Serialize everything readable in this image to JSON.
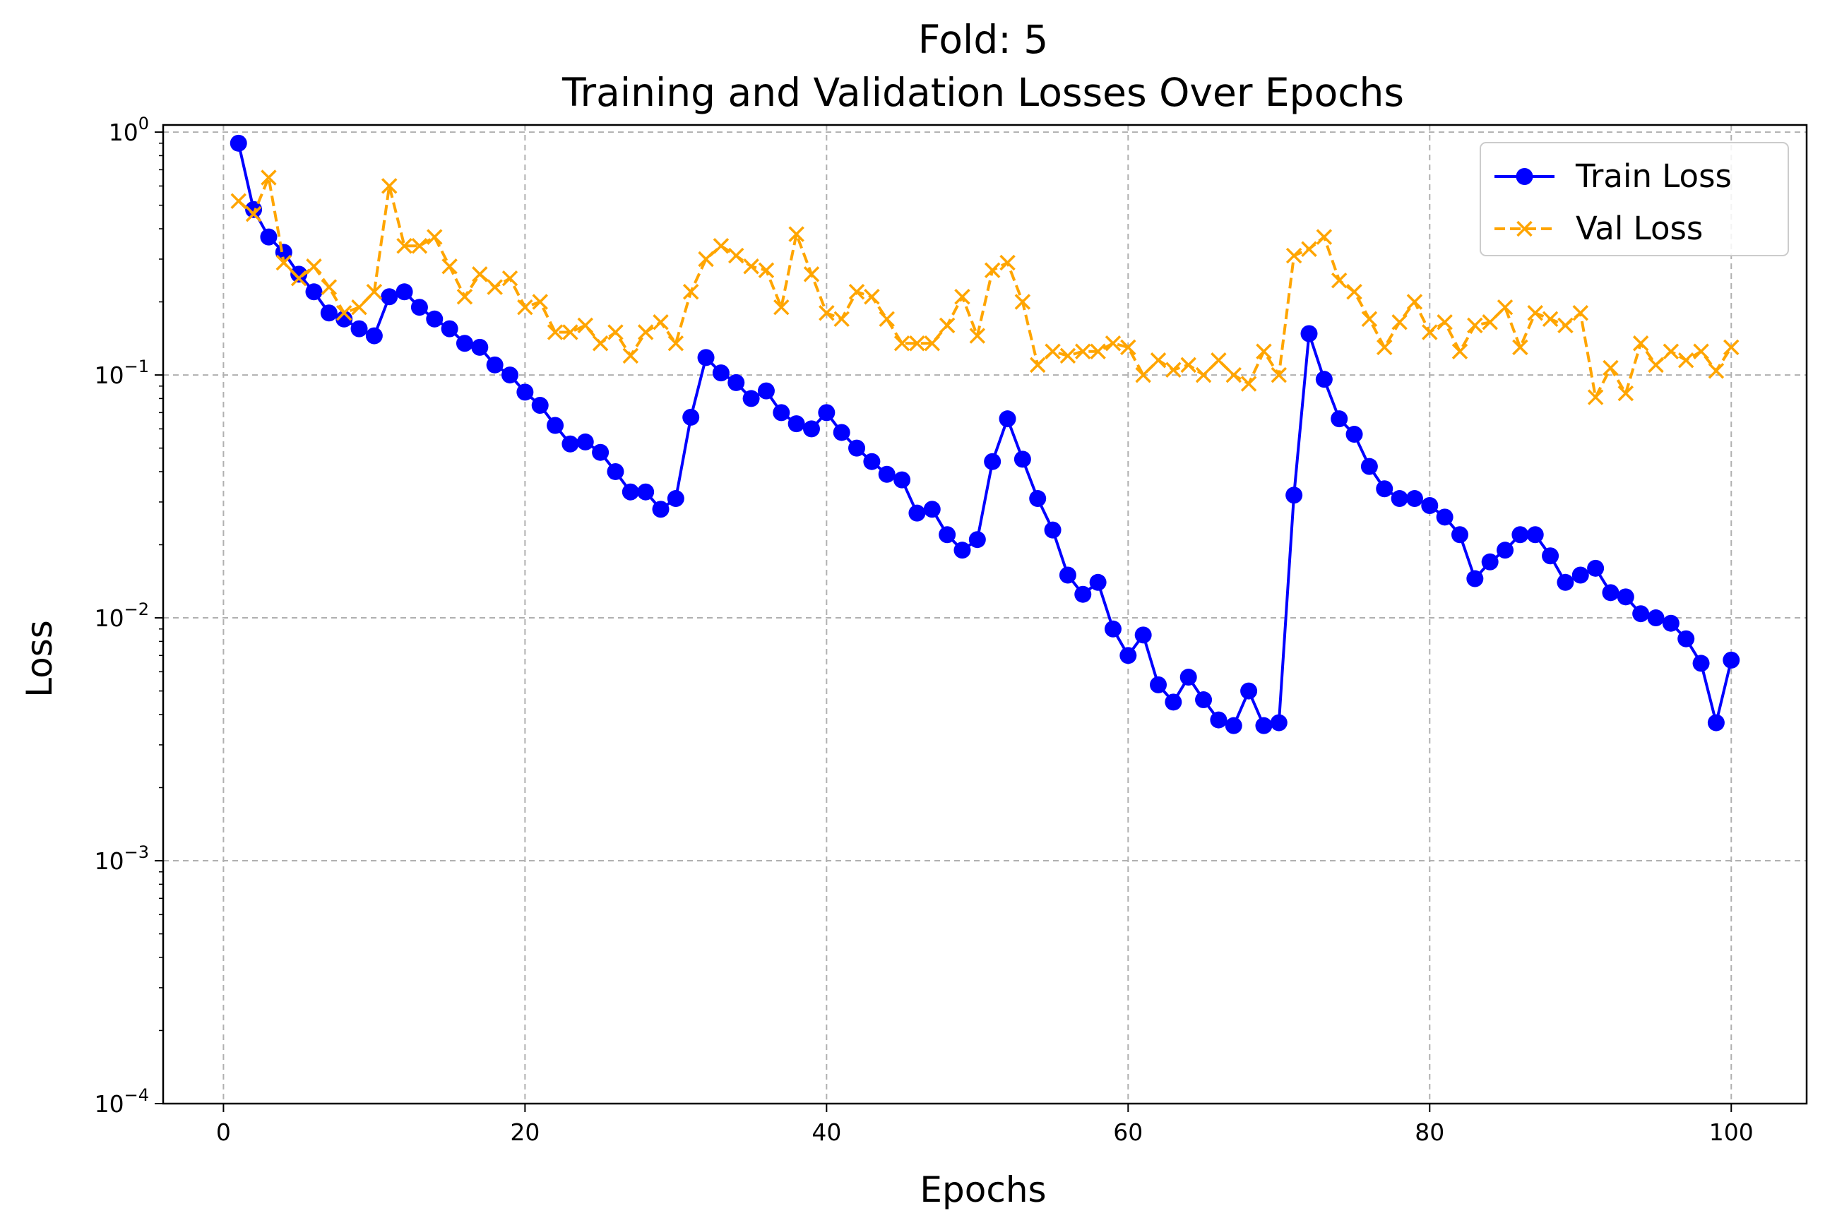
{
  "chart_data": {
    "type": "line",
    "title": "Fold: 5",
    "subtitle": "Training and Validation Losses Over Epochs",
    "xlabel": "Epochs",
    "ylabel": "Loss",
    "xlim": [
      -4,
      105
    ],
    "ylim": [
      0.0001,
      1.07
    ],
    "yscale": "log",
    "grid": true,
    "legend_position": "top-right",
    "x_ticks": [
      0,
      20,
      40,
      60,
      80,
      100
    ],
    "x_tick_labels": [
      "0",
      "20",
      "40",
      "60",
      "80",
      "100"
    ],
    "y_ticks": [
      {
        "value": 1,
        "base": "10",
        "exp": "0"
      },
      {
        "value": 0.1,
        "base": "10",
        "exp": "−1"
      },
      {
        "value": 0.01,
        "base": "10",
        "exp": "−2"
      },
      {
        "value": 0.001,
        "base": "10",
        "exp": "−3"
      },
      {
        "value": 0.0001,
        "base": "10",
        "exp": "−4"
      }
    ],
    "x": [
      1,
      2,
      3,
      4,
      5,
      6,
      7,
      8,
      9,
      10,
      11,
      12,
      13,
      14,
      15,
      16,
      17,
      18,
      19,
      20,
      21,
      22,
      23,
      24,
      25,
      26,
      27,
      28,
      29,
      30,
      31,
      32,
      33,
      34,
      35,
      36,
      37,
      38,
      39,
      40,
      41,
      42,
      43,
      44,
      45,
      46,
      47,
      48,
      49,
      50,
      51,
      52,
      53,
      54,
      55,
      56,
      57,
      58,
      59,
      60,
      61,
      62,
      63,
      64,
      65,
      66,
      67,
      68,
      69,
      70,
      71,
      72,
      73,
      74,
      75,
      76,
      77,
      78,
      79,
      80,
      81,
      82,
      83,
      84,
      85,
      86,
      87,
      88,
      89,
      90,
      91,
      92,
      93,
      94,
      95,
      96,
      97,
      98,
      99,
      100
    ],
    "series": [
      {
        "name": "Train Loss",
        "color": "#0000ff",
        "line_style": "solid",
        "marker": "circle",
        "values": [
          0.9,
          0.48,
          0.37,
          0.32,
          0.26,
          0.22,
          0.18,
          0.17,
          0.155,
          0.145,
          0.21,
          0.22,
          0.19,
          0.17,
          0.155,
          0.135,
          0.13,
          0.11,
          0.1,
          0.085,
          0.075,
          0.062,
          0.052,
          0.053,
          0.048,
          0.04,
          0.033,
          0.033,
          0.028,
          0.031,
          0.067,
          0.118,
          0.102,
          0.093,
          0.08,
          0.086,
          0.07,
          0.063,
          0.06,
          0.07,
          0.058,
          0.05,
          0.044,
          0.039,
          0.037,
          0.027,
          0.028,
          0.022,
          0.019,
          0.021,
          0.044,
          0.066,
          0.045,
          0.031,
          0.023,
          0.015,
          0.0125,
          0.014,
          0.009,
          0.007,
          0.0085,
          0.0053,
          0.0045,
          0.0057,
          0.0046,
          0.0038,
          0.0036,
          0.005,
          0.0036,
          0.0037,
          0.032,
          0.148,
          0.096,
          0.066,
          0.057,
          0.042,
          0.034,
          0.031,
          0.031,
          0.029,
          0.026,
          0.022,
          0.0145,
          0.017,
          0.019,
          0.022,
          0.022,
          0.018,
          0.014,
          0.015,
          0.016,
          0.0127,
          0.0122,
          0.0104,
          0.01,
          0.0095,
          0.0082,
          0.0065,
          0.0037,
          0.0067
        ]
      },
      {
        "name": "Val Loss",
        "color": "#ffa500",
        "line_style": "dashed",
        "marker": "x",
        "values": [
          0.52,
          0.46,
          0.65,
          0.29,
          0.25,
          0.28,
          0.23,
          0.18,
          0.19,
          0.22,
          0.6,
          0.34,
          0.34,
          0.37,
          0.28,
          0.21,
          0.26,
          0.23,
          0.25,
          0.19,
          0.2,
          0.15,
          0.15,
          0.16,
          0.135,
          0.15,
          0.12,
          0.15,
          0.165,
          0.135,
          0.22,
          0.3,
          0.34,
          0.31,
          0.28,
          0.27,
          0.19,
          0.38,
          0.26,
          0.18,
          0.17,
          0.22,
          0.21,
          0.17,
          0.135,
          0.135,
          0.135,
          0.16,
          0.21,
          0.145,
          0.27,
          0.29,
          0.2,
          0.11,
          0.125,
          0.12,
          0.125,
          0.125,
          0.135,
          0.13,
          0.1,
          0.115,
          0.105,
          0.11,
          0.1,
          0.115,
          0.1,
          0.092,
          0.125,
          0.1,
          0.31,
          0.33,
          0.37,
          0.245,
          0.22,
          0.17,
          0.13,
          0.165,
          0.2,
          0.15,
          0.165,
          0.125,
          0.16,
          0.165,
          0.19,
          0.13,
          0.18,
          0.17,
          0.16,
          0.18,
          0.081,
          0.107,
          0.084,
          0.135,
          0.11,
          0.125,
          0.115,
          0.125,
          0.104,
          0.13
        ]
      }
    ]
  }
}
